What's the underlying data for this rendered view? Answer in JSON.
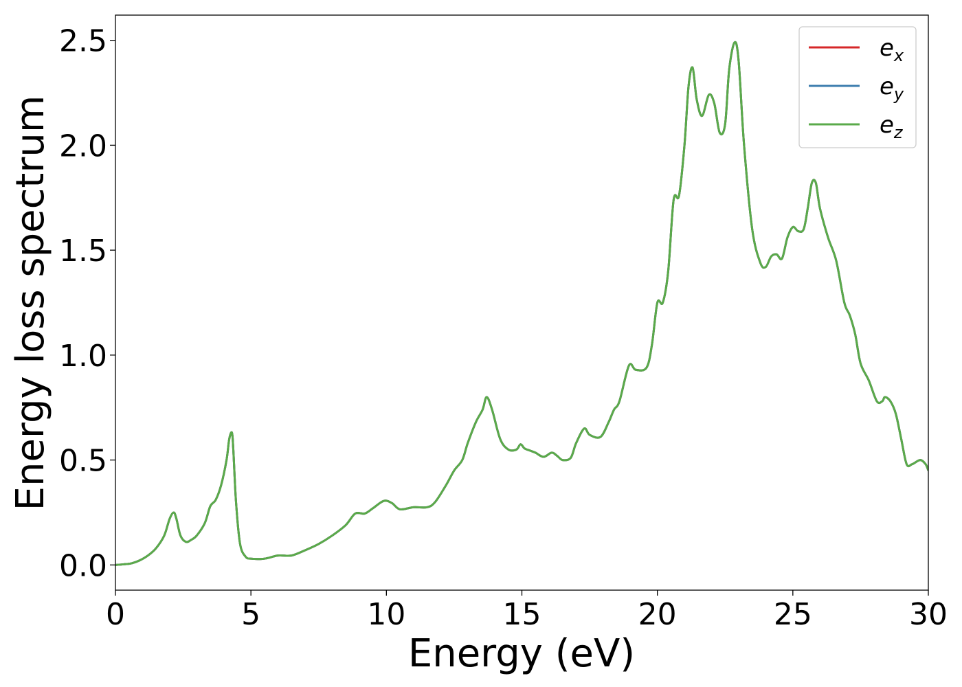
{
  "chart_data": {
    "type": "line",
    "title": "",
    "xlabel": "Energy (eV)",
    "ylabel": "Energy loss spectrum",
    "xlim": [
      0,
      30
    ],
    "ylim": [
      -0.12,
      2.62
    ],
    "xticks": [
      0,
      5,
      10,
      15,
      20,
      25,
      30
    ],
    "yticks": [
      0.0,
      0.5,
      1.0,
      1.5,
      2.0,
      2.5
    ],
    "grid": false,
    "legend_position": "top-right",
    "x": [
      0,
      0.3,
      0.6,
      0.9,
      1.2,
      1.5,
      1.8,
      2.0,
      2.15,
      2.25,
      2.4,
      2.6,
      2.8,
      3.0,
      3.3,
      3.5,
      3.7,
      3.9,
      4.1,
      4.2,
      4.3,
      4.35,
      4.45,
      4.6,
      4.8,
      5.0,
      5.5,
      6.0,
      6.5,
      7.0,
      7.5,
      8.0,
      8.5,
      8.85,
      9.2,
      9.5,
      9.9,
      10.2,
      10.5,
      11.0,
      11.5,
      11.8,
      12.2,
      12.5,
      12.8,
      13.0,
      13.3,
      13.55,
      13.7,
      13.9,
      14.2,
      14.5,
      14.8,
      14.95,
      15.1,
      15.3,
      15.5,
      15.8,
      16.1,
      16.3,
      16.5,
      16.8,
      17.0,
      17.3,
      17.5,
      17.9,
      18.2,
      18.4,
      18.6,
      18.95,
      19.2,
      19.6,
      19.8,
      20.0,
      20.2,
      20.4,
      20.6,
      20.8,
      21.0,
      21.15,
      21.3,
      21.45,
      21.65,
      21.9,
      22.1,
      22.3,
      22.5,
      22.65,
      22.85,
      23.0,
      23.2,
      23.5,
      23.8,
      24.0,
      24.2,
      24.4,
      24.6,
      24.8,
      25.0,
      25.2,
      25.4,
      25.55,
      25.7,
      25.85,
      26.0,
      26.3,
      26.6,
      26.9,
      27.1,
      27.3,
      27.5,
      27.8,
      28.1,
      28.3,
      28.4,
      28.6,
      28.8,
      29.0,
      29.2,
      29.4,
      29.7,
      29.9,
      30.0
    ],
    "series": [
      {
        "name": "e_x",
        "color": "#d62728",
        "values": [
          0.0,
          0.003,
          0.008,
          0.022,
          0.045,
          0.08,
          0.14,
          0.22,
          0.25,
          0.22,
          0.14,
          0.11,
          0.12,
          0.14,
          0.2,
          0.28,
          0.31,
          0.38,
          0.5,
          0.6,
          0.63,
          0.55,
          0.3,
          0.1,
          0.04,
          0.03,
          0.03,
          0.045,
          0.045,
          0.07,
          0.1,
          0.14,
          0.19,
          0.245,
          0.245,
          0.27,
          0.305,
          0.295,
          0.265,
          0.275,
          0.275,
          0.3,
          0.38,
          0.45,
          0.5,
          0.58,
          0.68,
          0.74,
          0.8,
          0.74,
          0.6,
          0.55,
          0.55,
          0.575,
          0.555,
          0.545,
          0.535,
          0.515,
          0.535,
          0.52,
          0.5,
          0.51,
          0.58,
          0.65,
          0.62,
          0.61,
          0.68,
          0.74,
          0.78,
          0.95,
          0.93,
          0.94,
          1.05,
          1.25,
          1.25,
          1.4,
          1.74,
          1.76,
          2.0,
          2.28,
          2.37,
          2.22,
          2.14,
          2.24,
          2.2,
          2.06,
          2.1,
          2.36,
          2.49,
          2.4,
          2.0,
          1.6,
          1.44,
          1.42,
          1.47,
          1.48,
          1.46,
          1.56,
          1.61,
          1.59,
          1.6,
          1.7,
          1.82,
          1.82,
          1.7,
          1.56,
          1.45,
          1.25,
          1.19,
          1.1,
          0.96,
          0.88,
          0.78,
          0.78,
          0.8,
          0.78,
          0.72,
          0.6,
          0.48,
          0.48,
          0.5,
          0.48,
          0.45
        ]
      },
      {
        "name": "e_y",
        "color": "#3d7dae",
        "values": [
          0.0,
          0.003,
          0.008,
          0.022,
          0.045,
          0.08,
          0.14,
          0.22,
          0.25,
          0.22,
          0.14,
          0.11,
          0.12,
          0.14,
          0.2,
          0.28,
          0.31,
          0.38,
          0.5,
          0.6,
          0.63,
          0.55,
          0.3,
          0.1,
          0.04,
          0.03,
          0.03,
          0.045,
          0.045,
          0.07,
          0.1,
          0.14,
          0.19,
          0.245,
          0.245,
          0.27,
          0.305,
          0.295,
          0.265,
          0.275,
          0.275,
          0.3,
          0.38,
          0.45,
          0.5,
          0.58,
          0.68,
          0.74,
          0.8,
          0.74,
          0.6,
          0.55,
          0.55,
          0.575,
          0.555,
          0.545,
          0.535,
          0.515,
          0.535,
          0.52,
          0.5,
          0.51,
          0.58,
          0.65,
          0.62,
          0.61,
          0.68,
          0.74,
          0.78,
          0.95,
          0.93,
          0.94,
          1.05,
          1.25,
          1.25,
          1.4,
          1.74,
          1.76,
          2.0,
          2.28,
          2.37,
          2.22,
          2.14,
          2.24,
          2.2,
          2.06,
          2.1,
          2.36,
          2.49,
          2.4,
          2.0,
          1.6,
          1.44,
          1.42,
          1.47,
          1.48,
          1.46,
          1.56,
          1.61,
          1.59,
          1.6,
          1.7,
          1.82,
          1.82,
          1.7,
          1.56,
          1.45,
          1.25,
          1.19,
          1.1,
          0.96,
          0.88,
          0.78,
          0.78,
          0.8,
          0.78,
          0.72,
          0.6,
          0.48,
          0.48,
          0.5,
          0.48,
          0.45
        ]
      },
      {
        "name": "e_z",
        "color": "#5aaa4a",
        "values": [
          0.0,
          0.003,
          0.008,
          0.022,
          0.045,
          0.08,
          0.14,
          0.22,
          0.25,
          0.22,
          0.14,
          0.11,
          0.12,
          0.14,
          0.2,
          0.28,
          0.31,
          0.38,
          0.5,
          0.6,
          0.63,
          0.55,
          0.3,
          0.1,
          0.04,
          0.03,
          0.03,
          0.045,
          0.045,
          0.07,
          0.1,
          0.14,
          0.19,
          0.245,
          0.245,
          0.27,
          0.305,
          0.295,
          0.265,
          0.275,
          0.275,
          0.3,
          0.38,
          0.45,
          0.5,
          0.58,
          0.68,
          0.74,
          0.8,
          0.74,
          0.6,
          0.55,
          0.55,
          0.575,
          0.555,
          0.545,
          0.535,
          0.515,
          0.535,
          0.52,
          0.5,
          0.51,
          0.58,
          0.65,
          0.62,
          0.61,
          0.68,
          0.74,
          0.78,
          0.95,
          0.93,
          0.94,
          1.05,
          1.25,
          1.25,
          1.4,
          1.74,
          1.76,
          2.0,
          2.28,
          2.37,
          2.22,
          2.14,
          2.24,
          2.2,
          2.06,
          2.1,
          2.36,
          2.49,
          2.4,
          2.0,
          1.6,
          1.44,
          1.42,
          1.47,
          1.48,
          1.46,
          1.56,
          1.61,
          1.59,
          1.6,
          1.7,
          1.82,
          1.82,
          1.7,
          1.56,
          1.45,
          1.25,
          1.19,
          1.1,
          0.96,
          0.88,
          0.78,
          0.78,
          0.8,
          0.78,
          0.72,
          0.6,
          0.48,
          0.48,
          0.5,
          0.48,
          0.45
        ]
      }
    ],
    "legend": [
      {
        "base": "e",
        "sub": "x",
        "color": "#d62728"
      },
      {
        "base": "e",
        "sub": "y",
        "color": "#3d7dae"
      },
      {
        "base": "e",
        "sub": "z",
        "color": "#5aaa4a"
      }
    ]
  }
}
